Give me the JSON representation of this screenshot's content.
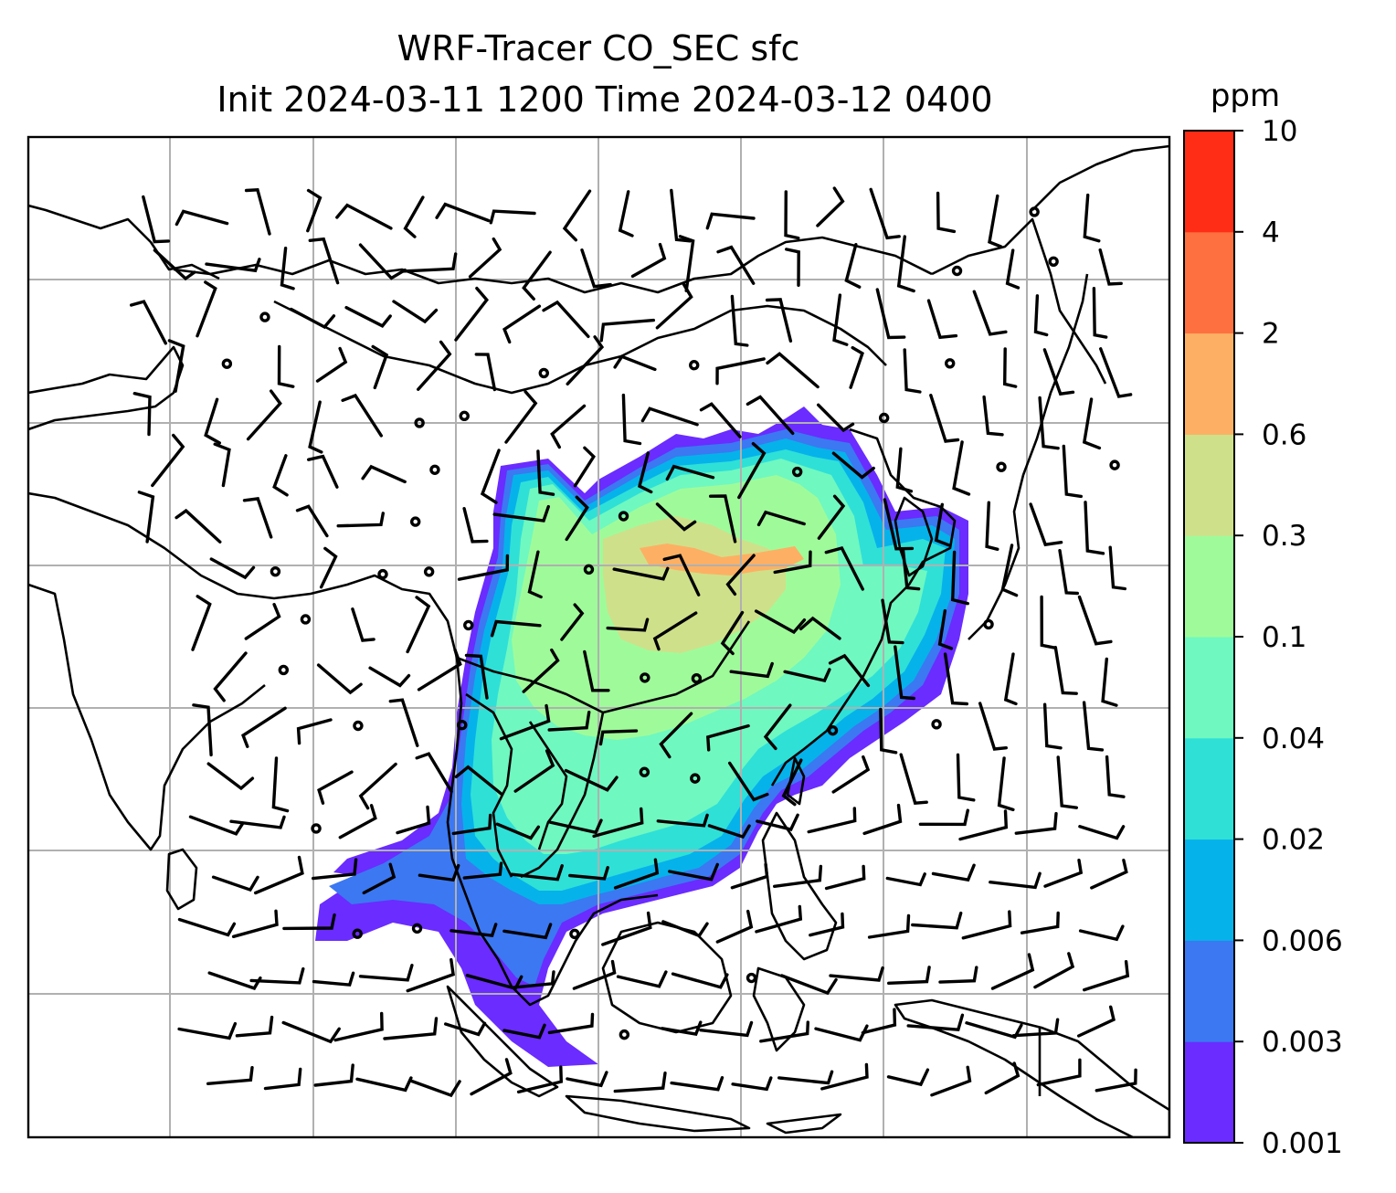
{
  "title": {
    "line1": "WRF-Tracer CO_SEC sfc",
    "line2": "Init 2024-03-11 1200 Time 2024-03-12 0400"
  },
  "colorbar": {
    "unit": "ppm",
    "levels": [
      "0.001",
      "0.003",
      "0.006",
      "0.02",
      "0.04",
      "0.1",
      "0.3",
      "0.6",
      "2",
      "4",
      "10"
    ],
    "colors": [
      "#6a2cff",
      "#3b78f2",
      "#06b2ea",
      "#2fe0d7",
      "#6ff8c0",
      "#9ffb9a",
      "#cfe08a",
      "#fdb063",
      "#ff7040",
      "#ff2c16"
    ]
  },
  "map": {
    "projection": "regional lat-lon grid, South/East Asia",
    "gridlines": true,
    "wind_barbs": true,
    "colors": {
      "coast": "#000000",
      "grid": "#b0b0b0",
      "barb": "#000000"
    }
  }
}
